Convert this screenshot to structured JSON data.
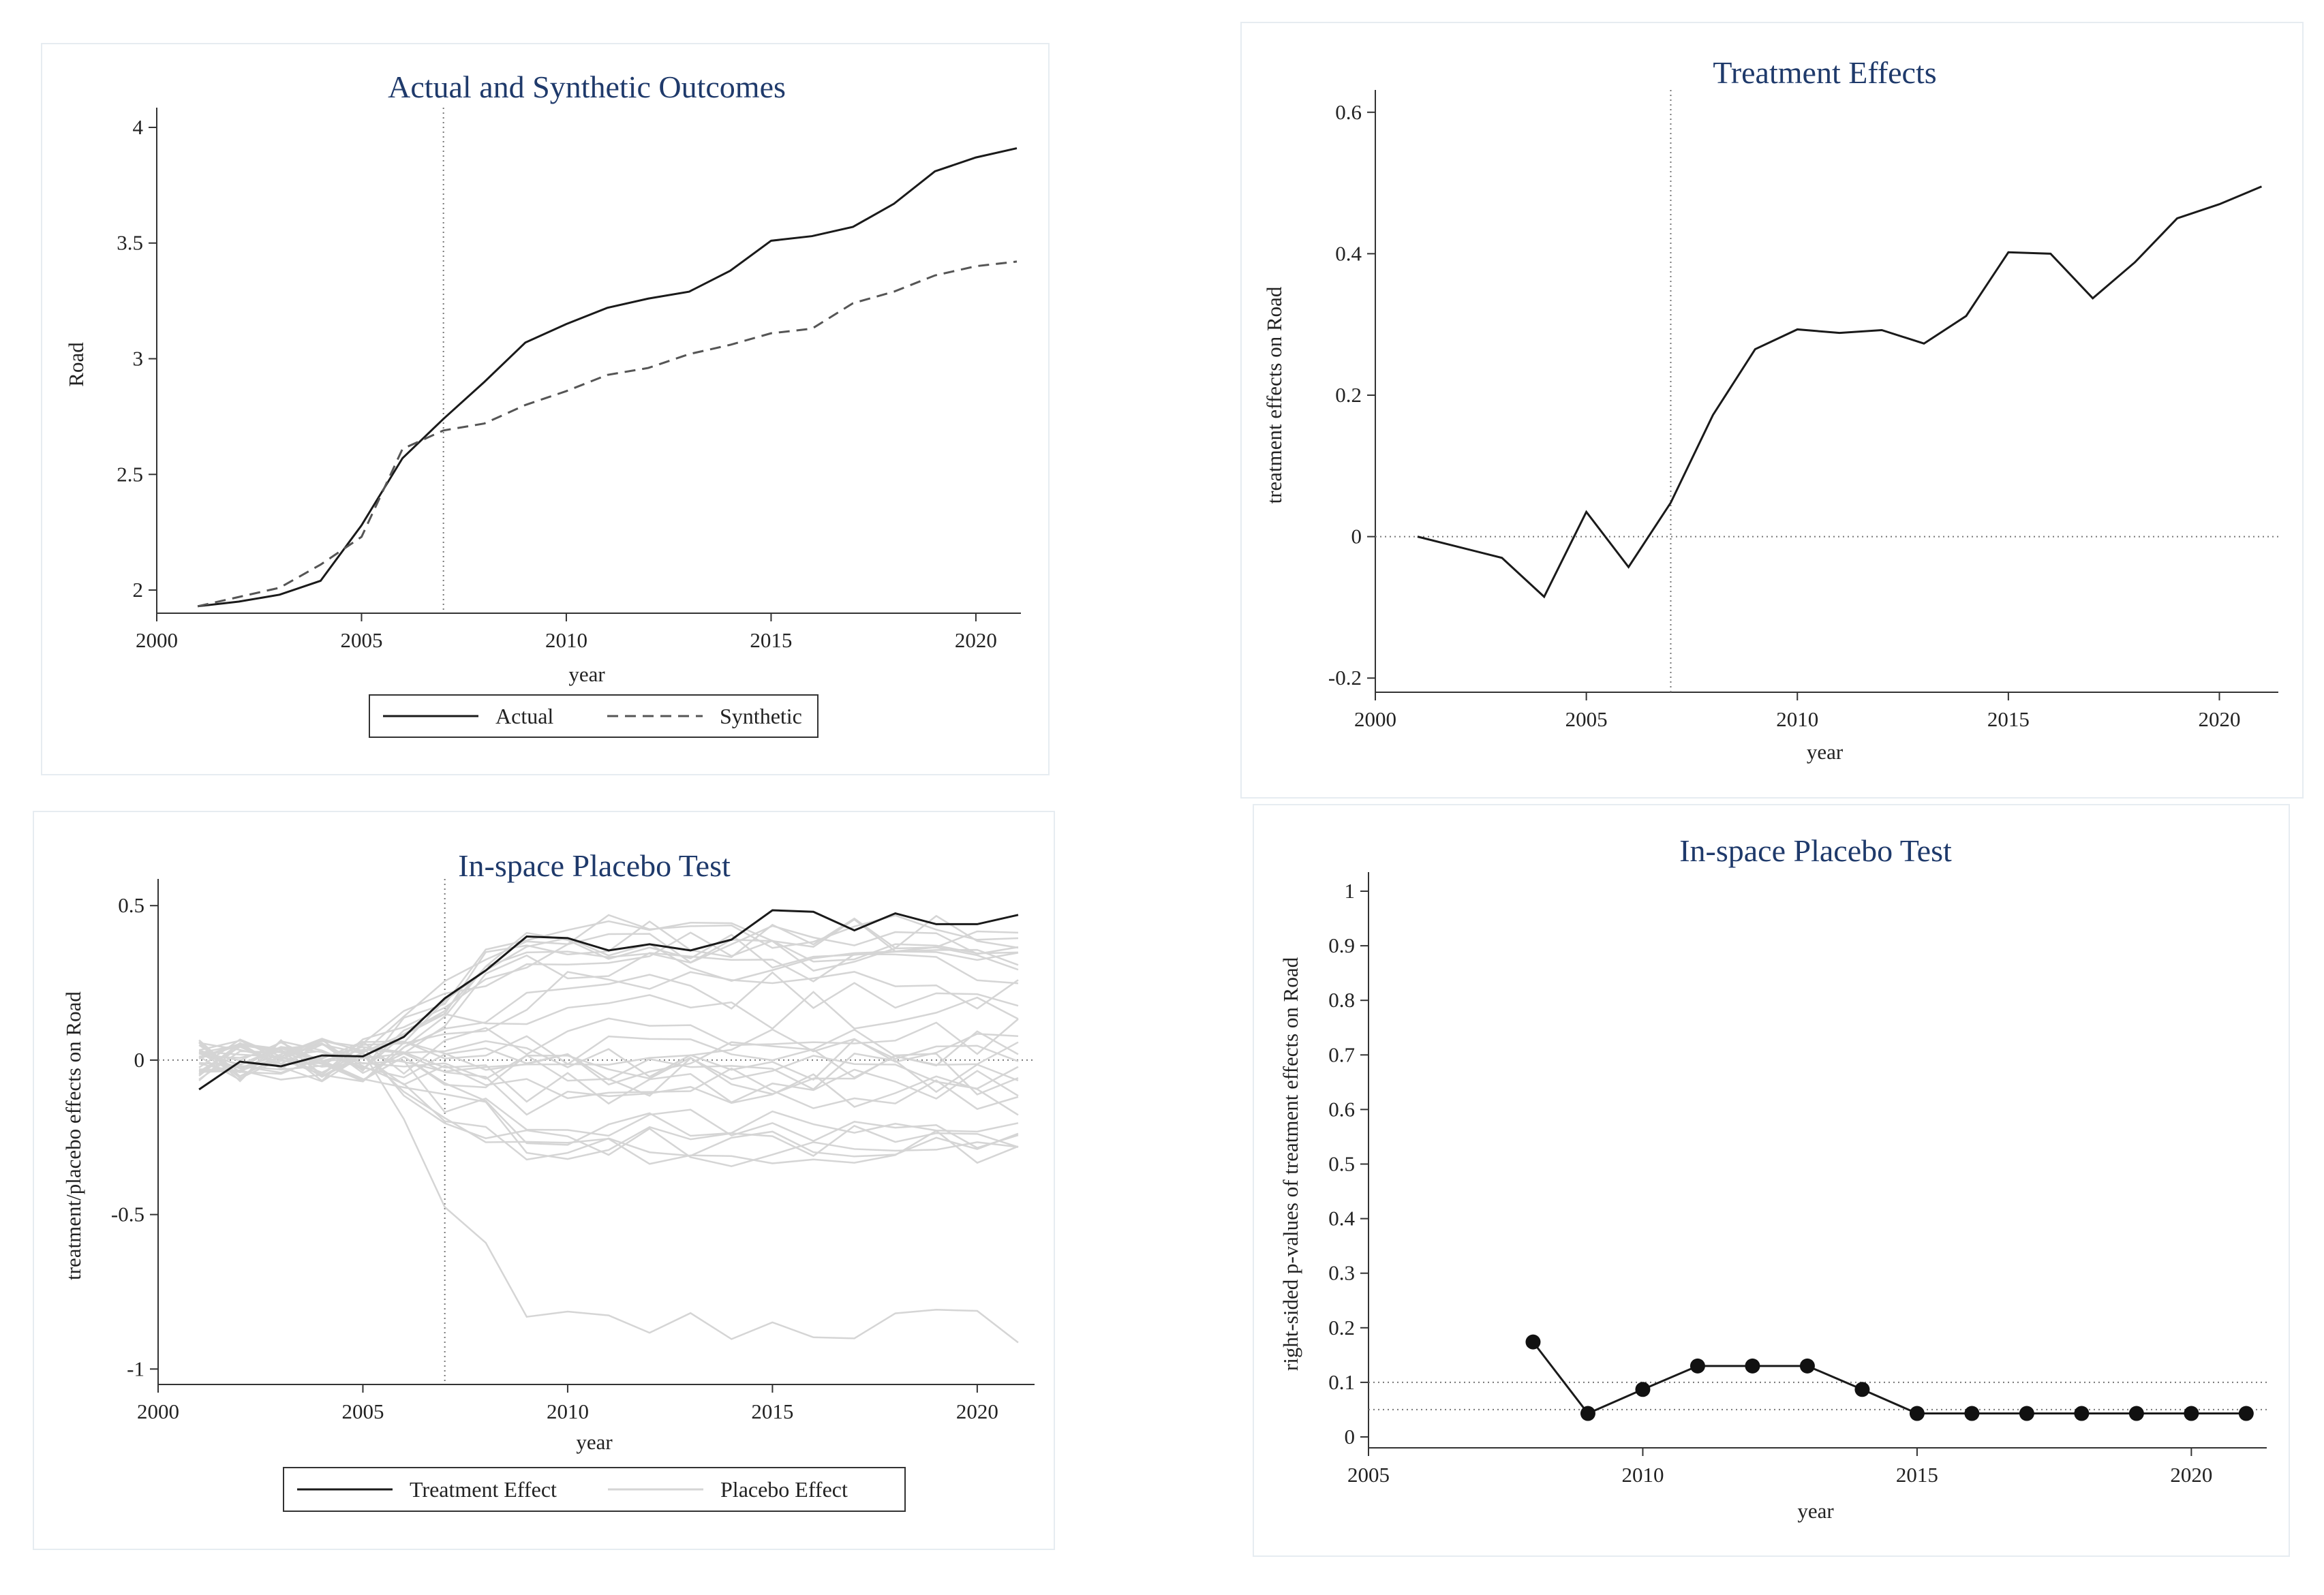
{
  "chart_data": [
    {
      "type": "line",
      "title": "Actual and Synthetic Outcomes",
      "xlabel": "year",
      "ylabel": "Road",
      "xlim": [
        2000,
        2021
      ],
      "ylim": [
        1.9,
        4.05
      ],
      "xticks": [
        2000,
        2005,
        2010,
        2015,
        2020
      ],
      "yticks": [
        2,
        2.5,
        3,
        3.5,
        4
      ],
      "yticklabels": [
        "2",
        "2.5",
        "3",
        "3.5",
        "4"
      ],
      "xticklabels": [
        "2000",
        "2005",
        "2010",
        "2015",
        "2020"
      ],
      "vline": 2007,
      "legend_position": "bottom",
      "x": [
        2001,
        2002,
        2003,
        2004,
        2005,
        2006,
        2007,
        2008,
        2009,
        2010,
        2011,
        2012,
        2013,
        2014,
        2015,
        2016,
        2017,
        2018,
        2019,
        2020,
        2021
      ],
      "series": [
        {
          "name": "Actual",
          "style": "solid",
          "values": [
            1.93,
            1.95,
            1.98,
            2.04,
            2.28,
            2.57,
            2.74,
            2.9,
            3.07,
            3.15,
            3.22,
            3.26,
            3.29,
            3.38,
            3.51,
            3.53,
            3.57,
            3.67,
            3.81,
            3.87,
            3.91
          ]
        },
        {
          "name": "Synthetic",
          "style": "dashed",
          "values": [
            1.93,
            1.97,
            2.01,
            2.11,
            2.23,
            2.61,
            2.69,
            2.72,
            2.8,
            2.86,
            2.93,
            2.96,
            3.02,
            3.06,
            3.11,
            3.13,
            3.24,
            3.29,
            3.36,
            3.4,
            3.42
          ]
        }
      ]
    },
    {
      "type": "line",
      "title": "Treatment Effects",
      "xlabel": "year",
      "ylabel": "treatment effects on Road",
      "xlim": [
        2000,
        2021.3
      ],
      "ylim": [
        -0.22,
        0.62
      ],
      "xticks": [
        2000,
        2005,
        2010,
        2015,
        2020
      ],
      "yticks": [
        -0.2,
        0,
        0.2,
        0.4,
        0.6
      ],
      "yticklabels": [
        "-0.2",
        "0",
        "0.2",
        "0.4",
        "0.6"
      ],
      "xticklabels": [
        "2000",
        "2005",
        "2010",
        "2015",
        "2020"
      ],
      "vline": 2007,
      "hline": 0,
      "x": [
        2001,
        2002,
        2003,
        2004,
        2005,
        2006,
        2007,
        2008,
        2009,
        2010,
        2011,
        2012,
        2013,
        2014,
        2015,
        2016,
        2017,
        2018,
        2019,
        2020,
        2021
      ],
      "series": [
        {
          "name": "Treatment effect",
          "style": "solid",
          "values": [
            0.0,
            -0.015,
            -0.03,
            -0.085,
            0.035,
            -0.043,
            0.048,
            0.172,
            0.265,
            0.293,
            0.288,
            0.292,
            0.273,
            0.312,
            0.402,
            0.4,
            0.337,
            0.388,
            0.45,
            0.47,
            0.495
          ]
        }
      ]
    },
    {
      "type": "line",
      "title": "In-space Placebo Test",
      "xlabel": "year",
      "ylabel": "treatment/placebo effects on Road",
      "xlim": [
        2000,
        2021.3
      ],
      "ylim": [
        -1.05,
        0.56
      ],
      "xticks": [
        2000,
        2005,
        2010,
        2015,
        2020
      ],
      "yticks": [
        -1,
        -0.5,
        0,
        0.5
      ],
      "yticklabels": [
        "-1",
        "-0.5",
        "0",
        "0.5"
      ],
      "xticklabels": [
        "2000",
        "2005",
        "2010",
        "2015",
        "2020"
      ],
      "vline": 2007,
      "hline": 0,
      "legend_position": "bottom",
      "x": [
        2001,
        2002,
        2003,
        2004,
        2005,
        2006,
        2007,
        2008,
        2009,
        2010,
        2011,
        2012,
        2013,
        2014,
        2015,
        2016,
        2017,
        2018,
        2019,
        2020,
        2021
      ],
      "series": [
        {
          "name": "Treatment Effect",
          "style": "solid",
          "values": [
            -0.095,
            -0.005,
            -0.02,
            0.015,
            0.012,
            0.075,
            0.2,
            0.29,
            0.4,
            0.395,
            0.355,
            0.375,
            0.355,
            0.39,
            0.485,
            0.48,
            0.42,
            0.475,
            0.44,
            0.44,
            0.47
          ]
        },
        {
          "name": "Placebo Effect",
          "style": "placebo",
          "count": 30
        }
      ]
    },
    {
      "type": "line",
      "title": "In-space Placebo Test",
      "xlabel": "year",
      "ylabel": "right-sided p-values of treatment effects on Road",
      "xlim": [
        2005,
        2021.3
      ],
      "ylim": [
        -0.02,
        1.02
      ],
      "xticks": [
        2005,
        2010,
        2015,
        2020
      ],
      "yticks": [
        0,
        0.1,
        0.2,
        0.3,
        0.4,
        0.5,
        0.6,
        0.7,
        0.8,
        0.9,
        1
      ],
      "yticklabels": [
        "0",
        "0.1",
        "0.2",
        "0.3",
        "0.4",
        "0.5",
        "0.6",
        "0.7",
        "0.8",
        "0.9",
        "1"
      ],
      "xticklabels": [
        "2005",
        "2010",
        "2015",
        "2020"
      ],
      "hlines": [
        0.05,
        0.1
      ],
      "x": [
        2008,
        2009,
        2010,
        2011,
        2012,
        2013,
        2014,
        2015,
        2016,
        2017,
        2018,
        2019,
        2020,
        2021
      ],
      "series": [
        {
          "name": "p-value",
          "style": "markers",
          "values": [
            0.174,
            0.043,
            0.087,
            0.13,
            0.13,
            0.13,
            0.087,
            0.043,
            0.043,
            0.043,
            0.043,
            0.043,
            0.043,
            0.043
          ]
        }
      ]
    }
  ]
}
